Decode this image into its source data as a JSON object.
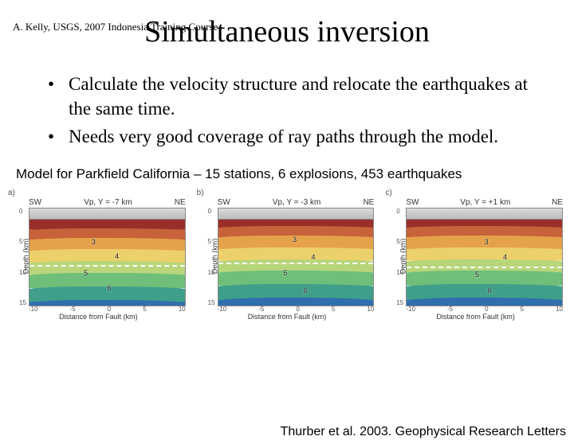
{
  "header_note": "A. Kelly, USGS, 2007 Indonesia Training Course",
  "title": "Simultaneous inversion",
  "bullets": [
    "Calculate the velocity structure and relocate the earthquakes at the same time.",
    "Needs very good coverage of ray paths through the model."
  ],
  "caption": "Model for Parkfield California – 15 stations, 6 explosions, 453 earthquakes",
  "citation": "Thurber et al. 2003. Geophysical Research Letters",
  "panels": [
    {
      "tag": "a)",
      "sw": "SW",
      "vp": "Vp, Y = -7 km",
      "ne": "NE",
      "ylabel": "Depth (km)",
      "xlabel": "Distance from Fault (km)",
      "yticks": [
        "0",
        "5",
        "10",
        "15"
      ],
      "xticks": [
        "-10",
        "-5",
        "0",
        "5",
        "10"
      ],
      "fault_top_pct": 58,
      "markers": [
        {
          "label": "3",
          "top_pct": 30,
          "left_pct": 40
        },
        {
          "label": "4",
          "top_pct": 45,
          "left_pct": 55
        },
        {
          "label": "5",
          "top_pct": 62,
          "left_pct": 35
        },
        {
          "label": "6",
          "top_pct": 78,
          "left_pct": 50
        }
      ],
      "bands": [
        {
          "color": "#9a2f2a",
          "top_pct": 10,
          "height_pct": 14
        },
        {
          "color": "#c7623a",
          "top_pct": 20,
          "height_pct": 14
        },
        {
          "color": "#e6a24a",
          "top_pct": 30,
          "height_pct": 16
        },
        {
          "color": "#ecd06a",
          "top_pct": 42,
          "height_pct": 16
        },
        {
          "color": "#b7d67a",
          "top_pct": 54,
          "height_pct": 16
        },
        {
          "color": "#6fbf7a",
          "top_pct": 66,
          "height_pct": 18
        },
        {
          "color": "#3f9f8a",
          "top_pct": 80,
          "height_pct": 20
        },
        {
          "color": "#2f6fae",
          "top_pct": 94,
          "height_pct": 20
        }
      ]
    },
    {
      "tag": "b)",
      "sw": "SW",
      "vp": "Vp, Y = -3 km",
      "ne": "NE",
      "ylabel": "Depth (km)",
      "xlabel": "Distance from Fault (km)",
      "yticks": [
        "0",
        "5",
        "10",
        "15"
      ],
      "xticks": [
        "-10",
        "-5",
        "0",
        "5",
        "10"
      ],
      "fault_top_pct": 56,
      "markers": [
        {
          "label": "3",
          "top_pct": 28,
          "left_pct": 48
        },
        {
          "label": "4",
          "top_pct": 46,
          "left_pct": 60
        },
        {
          "label": "5",
          "top_pct": 62,
          "left_pct": 42
        },
        {
          "label": "6",
          "top_pct": 80,
          "left_pct": 55
        }
      ],
      "bands": [
        {
          "color": "#9a2f2a",
          "top_pct": 10,
          "height_pct": 12
        },
        {
          "color": "#c7623a",
          "top_pct": 18,
          "height_pct": 14
        },
        {
          "color": "#e6a24a",
          "top_pct": 28,
          "height_pct": 16
        },
        {
          "color": "#ecd06a",
          "top_pct": 40,
          "height_pct": 16
        },
        {
          "color": "#b7d67a",
          "top_pct": 52,
          "height_pct": 16
        },
        {
          "color": "#6fbf7a",
          "top_pct": 64,
          "height_pct": 18
        },
        {
          "color": "#3f9f8a",
          "top_pct": 78,
          "height_pct": 20
        },
        {
          "color": "#2f6fae",
          "top_pct": 92,
          "height_pct": 22
        }
      ]
    },
    {
      "tag": "c)",
      "sw": "SW",
      "vp": "Vp, Y = +1 km",
      "ne": "NE",
      "ylabel": "Depth (km)",
      "xlabel": "Distance from Fault (km)",
      "yticks": [
        "0",
        "5",
        "10",
        "15"
      ],
      "xticks": [
        "-10",
        "-5",
        "0",
        "5",
        "10"
      ],
      "fault_top_pct": 60,
      "markers": [
        {
          "label": "3",
          "top_pct": 30,
          "left_pct": 50
        },
        {
          "label": "4",
          "top_pct": 46,
          "left_pct": 62
        },
        {
          "label": "5",
          "top_pct": 64,
          "left_pct": 44
        },
        {
          "label": "6",
          "top_pct": 80,
          "left_pct": 52
        }
      ],
      "bands": [
        {
          "color": "#9a2f2a",
          "top_pct": 10,
          "height_pct": 12
        },
        {
          "color": "#c7623a",
          "top_pct": 18,
          "height_pct": 14
        },
        {
          "color": "#e6a24a",
          "top_pct": 28,
          "height_pct": 16
        },
        {
          "color": "#ecd06a",
          "top_pct": 40,
          "height_pct": 16
        },
        {
          "color": "#b7d67a",
          "top_pct": 52,
          "height_pct": 16
        },
        {
          "color": "#6fbf7a",
          "top_pct": 64,
          "height_pct": 18
        },
        {
          "color": "#3f9f8a",
          "top_pct": 78,
          "height_pct": 20
        },
        {
          "color": "#2f6fae",
          "top_pct": 92,
          "height_pct": 22
        }
      ]
    }
  ]
}
